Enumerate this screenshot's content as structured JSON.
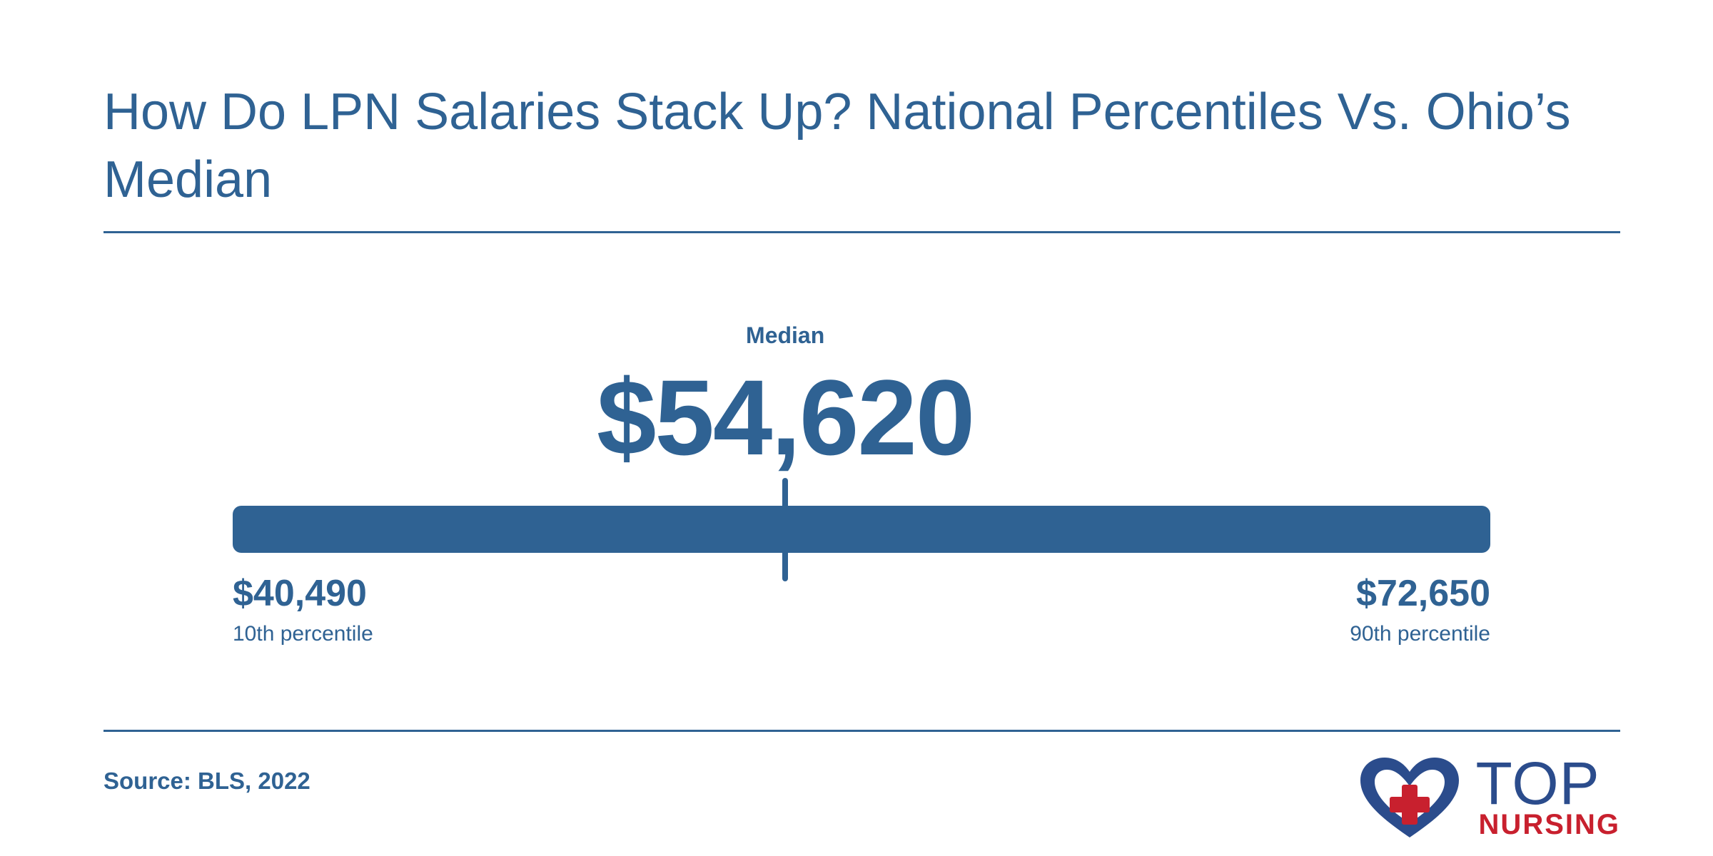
{
  "header": {
    "title": "How Do LPN Salaries Stack Up? National Percentiles Vs. Ohio’s Median"
  },
  "chart_data": {
    "type": "range",
    "title": "How Do LPN Salaries Stack Up? National Percentiles Vs. Ohio’s Median",
    "min": {
      "value": 40490,
      "label": "$40,490",
      "caption": "10th percentile"
    },
    "max": {
      "value": 72650,
      "label": "$72,650",
      "caption": "90th percentile"
    },
    "marker": {
      "value": 54620,
      "label": "$54,620",
      "caption": "Median"
    },
    "bar_color": "#2f6293"
  },
  "footer": {
    "source": "Source: BLS, 2022"
  },
  "logo": {
    "icon": "heart-cross-icon",
    "word1": "TOP",
    "word2": "NURSING",
    "primary_color": "#2b4c8c",
    "accent_color": "#c8202e"
  }
}
